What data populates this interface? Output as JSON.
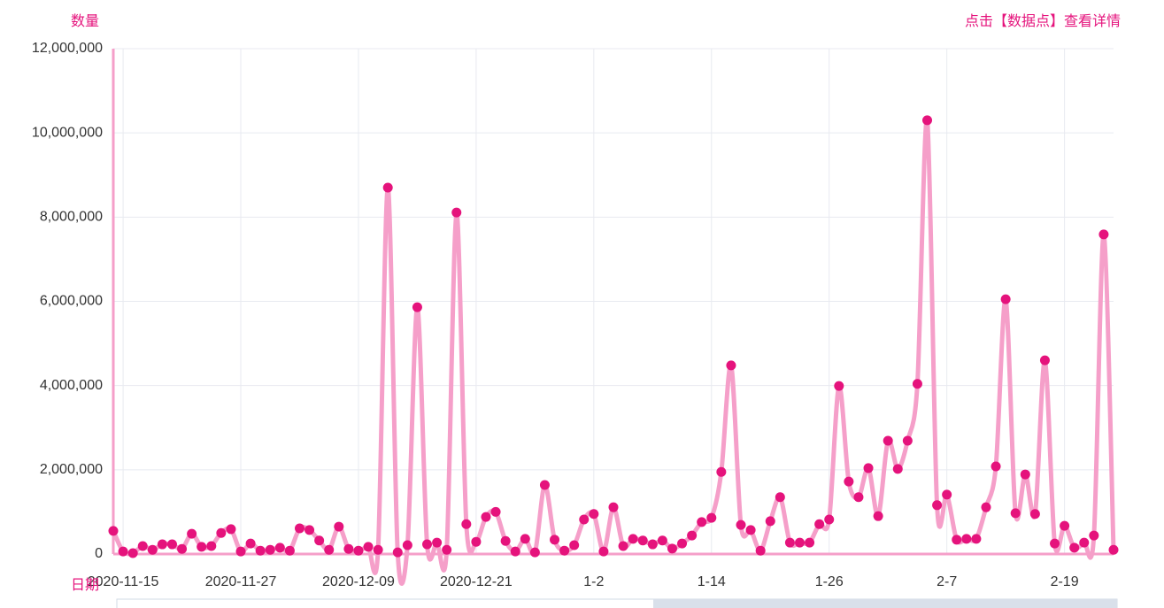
{
  "chart_data": {
    "type": "line",
    "y_axis_name": "数量",
    "x_axis_name": "日期",
    "hint": "点击【数据点】查看详情",
    "categories": [
      null,
      "2020-11-15",
      null,
      null,
      null,
      null,
      null,
      null,
      null,
      null,
      null,
      null,
      null,
      "2020-11-27",
      null,
      null,
      null,
      null,
      null,
      null,
      null,
      null,
      null,
      null,
      null,
      "2020-12-09",
      null,
      null,
      null,
      null,
      null,
      null,
      null,
      null,
      null,
      null,
      null,
      "2020-12-21",
      null,
      null,
      null,
      null,
      null,
      null,
      null,
      null,
      null,
      null,
      null,
      "1-2",
      null,
      null,
      null,
      null,
      null,
      null,
      null,
      null,
      null,
      null,
      null,
      "1-14",
      null,
      null,
      null,
      null,
      null,
      null,
      null,
      null,
      null,
      null,
      null,
      "1-26",
      null,
      null,
      null,
      null,
      null,
      null,
      null,
      null,
      null,
      null,
      null,
      "2-7",
      null,
      null,
      null,
      null,
      null,
      null,
      null,
      null,
      null,
      null,
      null,
      "2-19",
      null,
      null,
      null,
      null,
      null
    ],
    "series": [
      {
        "line_color": "#f59fc9",
        "color": "#e5137c",
        "values": [
          550000,
          60000,
          20000,
          190000,
          100000,
          230000,
          230000,
          120000,
          480000,
          170000,
          190000,
          500000,
          590000,
          60000,
          250000,
          80000,
          100000,
          150000,
          80000,
          610000,
          570000,
          320000,
          100000,
          650000,
          120000,
          80000,
          170000,
          100000,
          8700000,
          40000,
          210000,
          5860000,
          230000,
          270000,
          100000,
          8110000,
          710000,
          290000,
          880000,
          1000000,
          310000,
          60000,
          360000,
          40000,
          1640000,
          340000,
          80000,
          210000,
          820000,
          950000,
          60000,
          1110000,
          190000,
          360000,
          320000,
          230000,
          320000,
          130000,
          250000,
          440000,
          760000,
          860000,
          1950000,
          4480000,
          690000,
          570000,
          80000,
          780000,
          1350000,
          270000,
          270000,
          270000,
          710000,
          820000,
          3990000,
          1720000,
          1350000,
          2040000,
          900000,
          2690000,
          2020000,
          2690000,
          4040000,
          10300000,
          1160000,
          1410000,
          340000,
          360000,
          360000,
          1110000,
          2080000,
          6050000,
          970000,
          1890000,
          950000,
          4600000,
          250000,
          670000,
          150000,
          270000,
          440000,
          7590000,
          100000
        ]
      }
    ],
    "ylim": [
      0,
      12000000
    ],
    "yticks": [
      0,
      {
        "value": 2000000,
        "label": "2,000,000"
      },
      {
        "value": 4000000,
        "label": "4,000,000"
      },
      {
        "value": 6000000,
        "label": "6,000,000"
      },
      {
        "value": 8000000,
        "label": "8,000,000"
      },
      {
        "value": 10000000,
        "label": "10,000,000"
      },
      {
        "value": 12000000,
        "label": "12,000,000"
      }
    ],
    "grid": true
  }
}
